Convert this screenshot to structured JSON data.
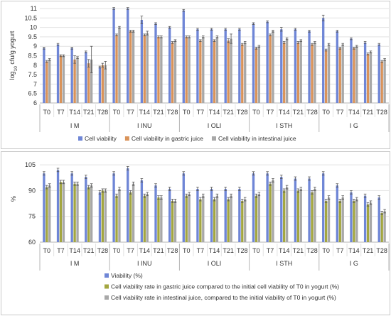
{
  "chart_data": [
    {
      "type": "bar",
      "ylabel": "log10 cfu/g yogurt",
      "ylabel_base": "log",
      "ylabel_sub": "10",
      "ylabel_rest": " cfu/g yogurt",
      "ylim": [
        6,
        11
      ],
      "yticks": [
        "6",
        "6.5",
        "7",
        "7.5",
        "8",
        "8.5",
        "9",
        "9.5",
        "10",
        "10.5",
        "11"
      ],
      "grid": true,
      "legend": "bottom",
      "time_points": [
        "T0",
        "T7",
        "T14",
        "T21",
        "T28"
      ],
      "groups": [
        "I M",
        "I INU",
        "I OLI",
        "I STH",
        "I G"
      ],
      "series": [
        {
          "name": "Cell viability",
          "color": "#6f86d6",
          "values": [
            [
              8.9,
              9.1,
              8.9,
              8.7,
              7.9
            ],
            [
              11.0,
              11.0,
              10.4,
              10.2,
              10.0
            ],
            [
              10.9,
              9.9,
              9.9,
              9.9,
              9.9
            ],
            [
              10.2,
              10.3,
              9.9,
              9.9,
              9.8
            ],
            [
              10.5,
              9.8,
              9.4,
              9.2,
              9.1
            ]
          ],
          "errors": [
            [
              0.05,
              0.05,
              0.05,
              0.05,
              0.05
            ],
            [
              0.05,
              0.05,
              0.2,
              0.05,
              0.05
            ],
            [
              0.05,
              0.05,
              0.05,
              0.05,
              0.05
            ],
            [
              0.05,
              0.05,
              0.1,
              0.05,
              0.05
            ],
            [
              0.15,
              0.05,
              0.05,
              0.05,
              0.05
            ]
          ]
        },
        {
          "name": "Cell viability in gastric juice",
          "color": "#d9935a",
          "values": [
            [
              8.2,
              8.5,
              8.3,
              8.1,
              8.0
            ],
            [
              9.6,
              9.8,
              9.6,
              9.5,
              9.2
            ],
            [
              9.5,
              9.3,
              9.3,
              9.3,
              9.1
            ],
            [
              8.9,
              9.6,
              9.2,
              9.2,
              9.1
            ],
            [
              8.8,
              8.9,
              8.9,
              8.6,
              8.2
            ]
          ],
          "errors": [
            [
              0.05,
              0.05,
              0.2,
              0.2,
              0.1
            ],
            [
              0.05,
              0.05,
              0.05,
              0.05,
              0.05
            ],
            [
              0.05,
              0.05,
              0.05,
              0.1,
              0.05
            ],
            [
              0.05,
              0.05,
              0.05,
              0.05,
              0.05
            ],
            [
              0.05,
              0.05,
              0.05,
              0.05,
              0.05
            ]
          ]
        },
        {
          "name": "Cell viability in intestinal juice",
          "color": "#a8a8a8",
          "values": [
            [
              8.3,
              8.5,
              8.4,
              8.3,
              8.0
            ],
            [
              10.0,
              9.8,
              9.7,
              9.5,
              9.3
            ],
            [
              9.5,
              9.5,
              9.5,
              9.4,
              9.2
            ],
            [
              9.0,
              9.8,
              9.4,
              9.3,
              9.2
            ],
            [
              9.1,
              9.1,
              9.0,
              8.7,
              8.3
            ]
          ],
          "errors": [
            [
              0.05,
              0.05,
              0.05,
              0.7,
              0.2
            ],
            [
              0.05,
              0.05,
              0.1,
              0.05,
              0.05
            ],
            [
              0.05,
              0.05,
              0.05,
              0.25,
              0.05
            ],
            [
              0.05,
              0.05,
              0.05,
              0.05,
              0.05
            ],
            [
              0.05,
              0.05,
              0.05,
              0.05,
              0.05
            ]
          ]
        }
      ]
    },
    {
      "type": "bar",
      "ylabel": "%",
      "ylim": [
        60,
        110
      ],
      "yticks": [
        "60",
        "75",
        "90",
        "105"
      ],
      "grid": true,
      "legend": "bottom",
      "time_points": [
        "T0",
        "T7",
        "T14",
        "T21",
        "T28"
      ],
      "groups": [
        "I M",
        "I INU",
        "I OLI",
        "I STH",
        "I G"
      ],
      "series": [
        {
          "name": "Viability (%)",
          "color": "#6f86d6",
          "values": [
            [
              100,
              102,
              100,
              98,
              89
            ],
            [
              100,
              103,
              96,
              93,
              91
            ],
            [
              100,
              91,
              91,
              91,
              91
            ],
            [
              100,
              100,
              98,
              97,
              97
            ],
            [
              100,
              93,
              89,
              87,
              86
            ]
          ],
          "errors": [
            [
              1,
              1,
              1,
              1,
              1
            ],
            [
              1,
              1,
              1,
              1,
              1
            ],
            [
              1,
              1,
              1,
              1,
              1
            ],
            [
              1,
              1,
              1,
              1,
              1
            ],
            [
              1,
              1,
              1,
              1,
              1
            ]
          ]
        },
        {
          "name": "Cell viability rate in gastric juice compared to the initial cell viability of T0 in yogurt (%)",
          "color": "#a3a640",
          "values": [
            [
              92,
              95,
              94,
              92,
              90
            ],
            [
              87,
              89,
              87,
              86,
              84
            ],
            [
              87,
              85,
              85,
              85,
              84
            ],
            [
              87,
              94,
              90,
              90,
              89
            ],
            [
              84,
              84,
              84,
              82,
              77
            ]
          ],
          "errors": [
            [
              1,
              1,
              1,
              1,
              1
            ],
            [
              1,
              1,
              1,
              1,
              1
            ],
            [
              1,
              1,
              1,
              1,
              1
            ],
            [
              1,
              1,
              1,
              1,
              1
            ],
            [
              1,
              1,
              1,
              1,
              1
            ]
          ]
        },
        {
          "name": "Cell viability rate in intestinal juice, compared to the initial viability of T0 in yogurt (%)",
          "color": "#a8a8a8",
          "values": [
            [
              93,
              95,
              94,
              93,
              90
            ],
            [
              91,
              94,
              88,
              86,
              84
            ],
            [
              88,
              87,
              87,
              87,
              85
            ],
            [
              88,
              96,
              92,
              91,
              91
            ],
            [
              86,
              86,
              85,
              83,
              78
            ]
          ],
          "errors": [
            [
              1,
              1,
              1,
              1,
              1
            ],
            [
              1,
              1,
              1,
              1,
              1
            ],
            [
              1,
              1,
              1,
              1,
              1
            ],
            [
              1,
              1,
              1,
              1,
              1
            ],
            [
              1,
              1,
              1,
              1,
              1
            ]
          ]
        }
      ]
    }
  ]
}
